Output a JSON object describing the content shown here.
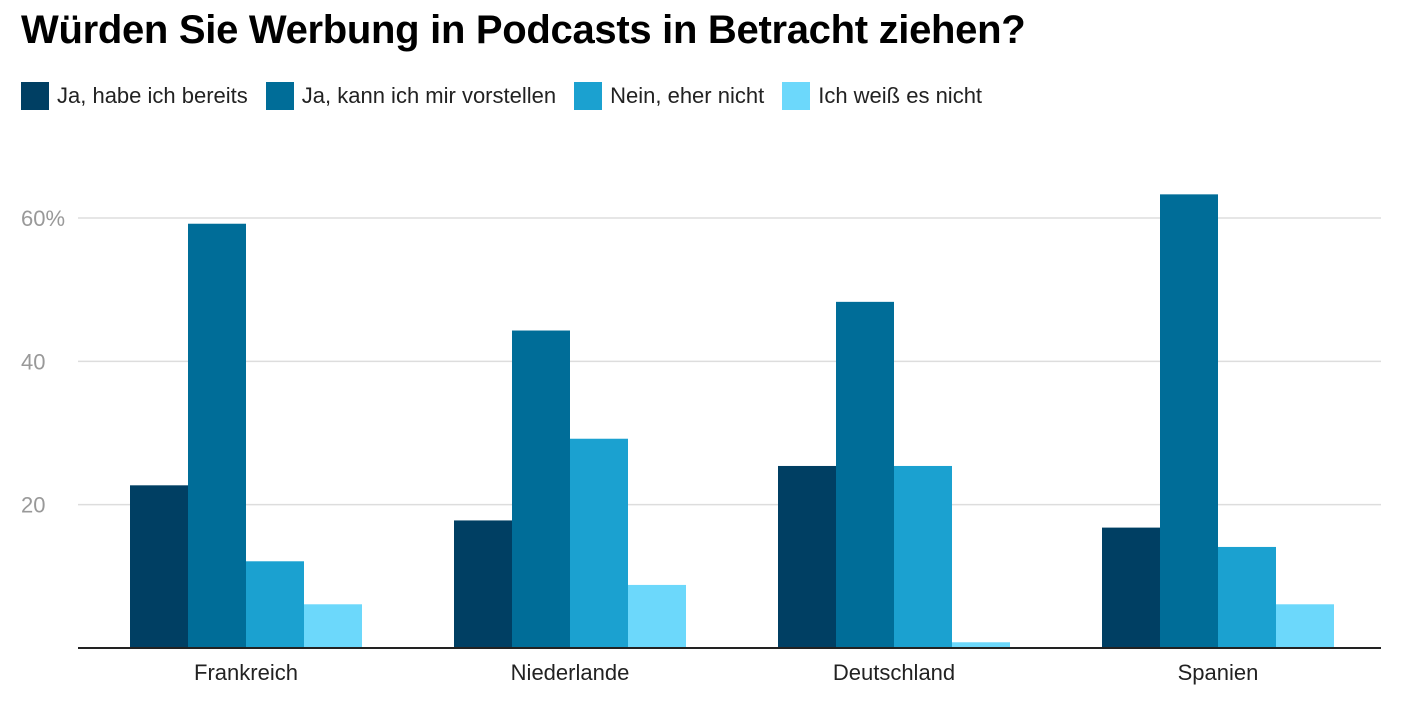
{
  "chart_data": {
    "type": "bar",
    "title": "Würden Sie Werbung in Podcasts in Betracht ziehen?",
    "categories": [
      "Frankreich",
      "Niederlande",
      "Deutschland",
      "Spanien"
    ],
    "series": [
      {
        "name": "Ja, habe ich bereits",
        "color": "#003f63",
        "values": [
          22.7,
          17.8,
          25.4,
          16.8
        ]
      },
      {
        "name": "Ja, kann ich mir vorstellen",
        "color": "#006d98",
        "values": [
          59.2,
          44.3,
          48.3,
          63.3
        ]
      },
      {
        "name": "Nein, eher nicht",
        "color": "#1ba1d0",
        "values": [
          12.1,
          29.2,
          25.4,
          14.1
        ]
      },
      {
        "name": "Ich weiß es nicht",
        "color": "#6cd8fb",
        "values": [
          6.1,
          8.8,
          0.8,
          6.1
        ]
      }
    ],
    "yticks": [
      {
        "value": 20,
        "label": "20"
      },
      {
        "value": 40,
        "label": "40"
      },
      {
        "value": 60,
        "label": "60%"
      }
    ],
    "ylim": [
      0,
      60
    ],
    "grid": true,
    "legend_position": "top-left"
  }
}
